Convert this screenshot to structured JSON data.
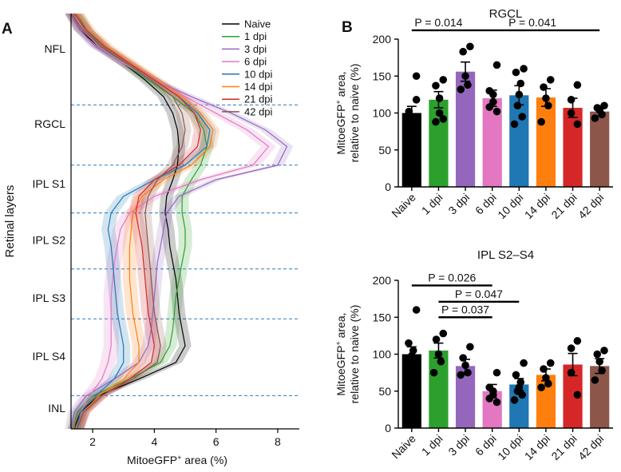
{
  "panel_a_letter": "A",
  "panel_b_letter": "B",
  "colors": {
    "Naive": "#000000",
    "1 dpi": "#2ca02c",
    "3 dpi": "#9467bd",
    "6 dpi": "#e377c2",
    "10 dpi": "#1f77b4",
    "14 dpi": "#ff7f0e",
    "21 dpi": "#d62728",
    "42 dpi": "#8c564b"
  },
  "chart_data": [
    {
      "type": "line",
      "id": "A",
      "xlabel": "MitoeGFP⁺ area (%)",
      "ylabel": "Retinal layers",
      "xlim": [
        1.3,
        8.7
      ],
      "xticks": [
        2,
        4,
        6,
        8
      ],
      "ylim": [
        0,
        1
      ],
      "layers": [
        {
          "label": "NFL",
          "center": 0.085
        },
        {
          "label": "RGCL",
          "center": 0.265
        },
        {
          "label": "IPL S1",
          "center": 0.41
        },
        {
          "label": "IPL S2",
          "center": 0.545
        },
        {
          "label": "IPL S3",
          "center": 0.685
        },
        {
          "label": "IPL S4",
          "center": 0.825
        },
        {
          "label": "INL",
          "center": 0.95
        }
      ],
      "boundaries": [
        0.22,
        0.365,
        0.48,
        0.615,
        0.735,
        0.92
      ],
      "legend_position": "top-right",
      "y": [
        0.0,
        0.04,
        0.08,
        0.12,
        0.16,
        0.2,
        0.24,
        0.28,
        0.32,
        0.365,
        0.4,
        0.44,
        0.48,
        0.52,
        0.56,
        0.6,
        0.64,
        0.68,
        0.72,
        0.76,
        0.8,
        0.84,
        0.88,
        0.92,
        0.96,
        1.0
      ],
      "series": [
        {
          "name": "Naive",
          "band": 0.2,
          "values": [
            1.3,
            1.6,
            2.2,
            3.0,
            3.7,
            4.3,
            4.6,
            4.75,
            4.8,
            4.75,
            4.6,
            4.4,
            4.35,
            4.45,
            4.5,
            4.6,
            4.7,
            4.75,
            4.8,
            4.9,
            5.0,
            4.7,
            3.5,
            2.2,
            1.6,
            1.4
          ]
        },
        {
          "name": "1 dpi",
          "band": 0.22,
          "values": [
            1.5,
            1.8,
            2.3,
            3.0,
            3.8,
            4.6,
            5.3,
            5.6,
            5.7,
            5.5,
            5.2,
            4.9,
            4.9,
            5.0,
            5.0,
            4.9,
            4.8,
            4.7,
            4.65,
            4.6,
            4.5,
            4.2,
            3.2,
            2.0,
            1.5,
            1.4
          ]
        },
        {
          "name": "3 dpi",
          "band": 0.2,
          "values": [
            1.3,
            1.6,
            2.1,
            3.0,
            4.0,
            5.2,
            6.5,
            7.6,
            8.3,
            8.0,
            6.0,
            4.8,
            4.4,
            4.3,
            4.2,
            4.1,
            4.05,
            4.0,
            3.95,
            3.9,
            3.8,
            3.5,
            2.7,
            1.8,
            1.4,
            1.3
          ]
        },
        {
          "name": "6 dpi",
          "band": 0.25,
          "values": [
            1.4,
            1.7,
            2.2,
            3.0,
            4.0,
            5.0,
            6.0,
            7.0,
            7.7,
            7.2,
            5.5,
            4.0,
            3.2,
            2.9,
            2.8,
            2.7,
            2.65,
            2.6,
            2.6,
            2.6,
            2.6,
            2.5,
            2.3,
            1.9,
            1.6,
            1.5
          ]
        },
        {
          "name": "10 dpi",
          "band": 0.22,
          "values": [
            1.4,
            1.8,
            2.4,
            3.2,
            4.0,
            4.8,
            5.4,
            5.8,
            5.7,
            5.0,
            4.0,
            3.0,
            2.6,
            2.5,
            2.6,
            2.65,
            2.7,
            2.75,
            2.8,
            2.9,
            3.0,
            3.0,
            2.7,
            2.1,
            1.6,
            1.5
          ]
        },
        {
          "name": "14 dpi",
          "band": 0.22,
          "values": [
            1.5,
            1.9,
            2.5,
            3.3,
            4.1,
            4.9,
            5.5,
            5.9,
            5.8,
            5.2,
            4.3,
            3.6,
            3.3,
            3.25,
            3.2,
            3.2,
            3.2,
            3.25,
            3.3,
            3.4,
            3.5,
            3.5,
            3.0,
            2.2,
            1.7,
            1.5
          ]
        },
        {
          "name": "21 dpi",
          "band": 0.22,
          "values": [
            1.4,
            1.8,
            2.4,
            3.2,
            4.0,
            4.8,
            5.3,
            5.5,
            5.4,
            4.8,
            4.0,
            3.5,
            3.4,
            3.5,
            3.6,
            3.65,
            3.7,
            3.75,
            3.8,
            3.9,
            4.0,
            3.9,
            3.2,
            2.3,
            1.7,
            1.5
          ]
        },
        {
          "name": "42 dpi",
          "band": 0.2,
          "values": [
            1.3,
            1.7,
            2.3,
            3.1,
            3.9,
            4.6,
            4.9,
            5.0,
            4.9,
            4.6,
            4.1,
            3.8,
            3.7,
            3.75,
            3.8,
            3.85,
            3.9,
            3.95,
            4.0,
            4.1,
            4.2,
            4.1,
            3.3,
            2.3,
            1.7,
            1.5
          ]
        }
      ]
    },
    {
      "type": "bar",
      "id": "B_RGCL",
      "title": "RGCL",
      "ylabel": "MitoeGFP⁺ area, relative to naive (%)",
      "ylim": [
        0,
        200
      ],
      "yticks": [
        0,
        50,
        100,
        150,
        200
      ],
      "categories": [
        "Naive",
        "1 dpi",
        "3 dpi",
        "6 dpi",
        "10 dpi",
        "14 dpi",
        "21 dpi",
        "42 dpi"
      ],
      "values": [
        100,
        118,
        156,
        120,
        124,
        121,
        107,
        102
      ],
      "errors": [
        9,
        11,
        13,
        11,
        13,
        12,
        13,
        6
      ],
      "points": [
        [
          150,
          102,
          95,
          85,
          80,
          118
        ],
        [
          145,
          137,
          120,
          100,
          88,
          92
        ],
        [
          190,
          183,
          150,
          138,
          132
        ],
        [
          165,
          130,
          125,
          115,
          108,
          102
        ],
        [
          160,
          155,
          140,
          125,
          110,
          95,
          85
        ],
        [
          145,
          135,
          120,
          110,
          88
        ],
        [
          138,
          118,
          100,
          85
        ],
        [
          110,
          107,
          104,
          98,
          93
        ]
      ],
      "annotations": [
        {
          "text": "P = 0.014",
          "from": 0,
          "to": 2,
          "y": 212
        },
        {
          "text": "P = 0.041",
          "from": 2,
          "to": 7,
          "y": 212
        }
      ]
    },
    {
      "type": "bar",
      "id": "B_IPL",
      "title": "IPL S2–S4",
      "ylabel": "MitoeGFP⁺ area, relative to naive (%)",
      "ylim": [
        0,
        200
      ],
      "yticks": [
        0,
        50,
        100,
        150,
        200
      ],
      "categories": [
        "Naive",
        "1 dpi",
        "3 dpi",
        "6 dpi",
        "10 dpi",
        "14 dpi",
        "21 dpi",
        "42 dpi"
      ],
      "values": [
        100,
        105,
        84,
        50,
        59,
        72,
        86,
        84
      ],
      "errors": [
        10,
        10,
        9,
        9,
        8,
        8,
        15,
        10
      ],
      "points": [
        [
          160,
          115,
          105,
          98,
          90,
          75,
          70
        ],
        [
          128,
          120,
          100,
          90,
          75
        ],
        [
          110,
          95,
          85,
          75,
          72
        ],
        [
          75,
          55,
          50,
          45,
          40,
          35
        ],
        [
          88,
          72,
          62,
          55,
          50,
          45,
          38
        ],
        [
          88,
          80,
          68,
          60,
          55
        ],
        [
          118,
          108,
          75,
          45
        ],
        [
          105,
          100,
          90,
          78,
          65
        ]
      ],
      "annotations": [
        {
          "text": "P = 0.026",
          "from": 0,
          "to": 3,
          "y": 193
        },
        {
          "text": "P = 0.047",
          "from": 1,
          "to": 4,
          "y": 171
        },
        {
          "text": "P = 0.037",
          "from": 1,
          "to": 3,
          "y": 150
        }
      ]
    }
  ]
}
